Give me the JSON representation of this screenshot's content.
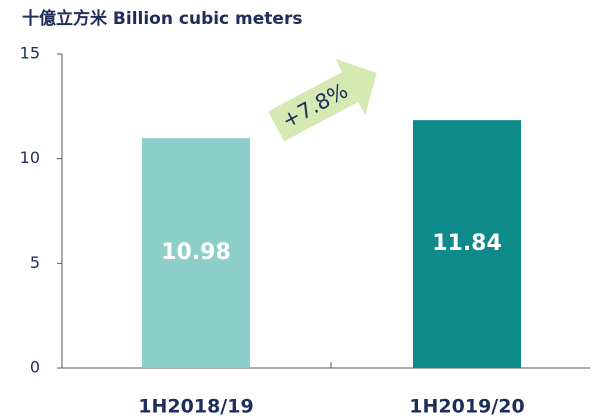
{
  "chart_data": {
    "type": "bar",
    "title": "十億立方米 Billion cubic meters",
    "categories": [
      "1H2018/19",
      "1H2019/20"
    ],
    "values": [
      10.98,
      11.84
    ],
    "colors": [
      "#8ccfc9",
      "#0e8a8a"
    ],
    "ylim": [
      0,
      15
    ],
    "yticks": [
      0,
      5,
      10,
      15
    ],
    "annotation": "+7.8%"
  }
}
